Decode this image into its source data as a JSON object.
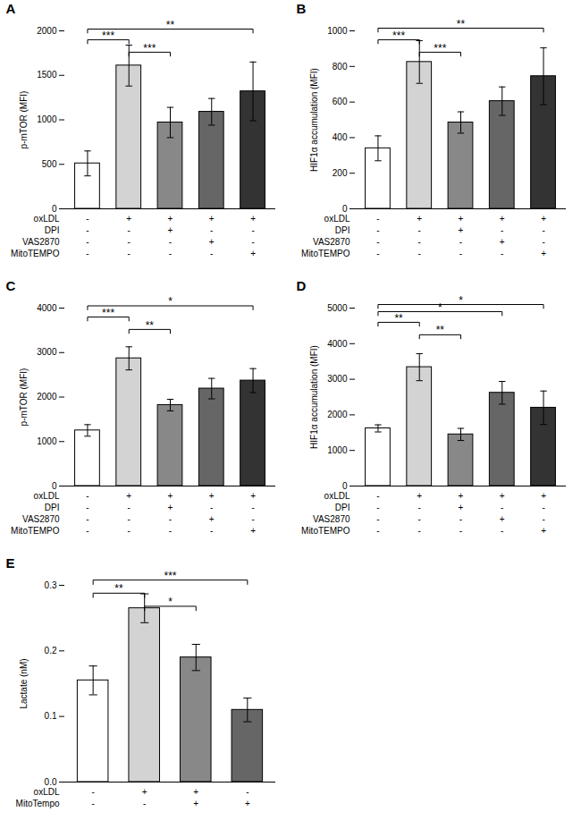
{
  "chart_data": [
    {
      "type": "bar",
      "title": "A",
      "ylabel": "p-mTOR (MFI)",
      "categories": [
        null,
        null,
        null,
        null,
        null
      ],
      "values": [
        510,
        1610,
        970,
        1090,
        1320
      ],
      "errors": [
        140,
        230,
        170,
        150,
        330
      ],
      "colors": [
        "#ffffff",
        "#d3d3d3",
        "#888888",
        "#666666",
        "#333333"
      ],
      "ylim": [
        0,
        2000
      ],
      "yticks": [
        0,
        500,
        1000,
        1500,
        2000
      ],
      "annotations": [
        {
          "bars": [
            0,
            1
          ],
          "label": "***",
          "y": 1900
        },
        {
          "bars": [
            1,
            2
          ],
          "label": "***",
          "y": 1760
        },
        {
          "bars": [
            0,
            4
          ],
          "label": "**",
          "y": 2020
        }
      ],
      "sign_rows": [
        {
          "label": "oxLDL",
          "signs": [
            "-",
            "+",
            "+",
            "+",
            "+"
          ]
        },
        {
          "label": "DPI",
          "signs": [
            "-",
            "-",
            "+",
            "-",
            "-"
          ]
        },
        {
          "label": "VAS2870",
          "signs": [
            "-",
            "-",
            "-",
            "+",
            "-"
          ]
        },
        {
          "label": "MitoTEMPO",
          "signs": [
            "-",
            "-",
            "-",
            "-",
            "+"
          ]
        }
      ]
    },
    {
      "type": "bar",
      "title": "B",
      "ylabel": "HIF1α accumulation (MFI)",
      "categories": [
        null,
        null,
        null,
        null,
        null
      ],
      "values": [
        340,
        825,
        485,
        605,
        745
      ],
      "errors": [
        70,
        120,
        60,
        80,
        160
      ],
      "colors": [
        "#ffffff",
        "#d3d3d3",
        "#888888",
        "#666666",
        "#333333"
      ],
      "ylim": [
        0,
        1000
      ],
      "yticks": [
        0,
        200,
        400,
        600,
        800,
        1000
      ],
      "annotations": [
        {
          "bars": [
            0,
            1
          ],
          "label": "***",
          "y": 950
        },
        {
          "bars": [
            1,
            2
          ],
          "label": "***",
          "y": 880
        },
        {
          "bars": [
            0,
            4
          ],
          "label": "**",
          "y": 1015
        }
      ],
      "sign_rows": [
        {
          "label": "oxLDL",
          "signs": [
            "-",
            "+",
            "+",
            "+",
            "+"
          ]
        },
        {
          "label": "DPI",
          "signs": [
            "-",
            "-",
            "+",
            "-",
            "-"
          ]
        },
        {
          "label": "VAS2870",
          "signs": [
            "-",
            "-",
            "-",
            "+",
            "-"
          ]
        },
        {
          "label": "MitoTEMPO",
          "signs": [
            "-",
            "-",
            "-",
            "-",
            "+"
          ]
        }
      ]
    },
    {
      "type": "bar",
      "title": "C",
      "ylabel": "p-mTOR (MFI)",
      "categories": [
        null,
        null,
        null,
        null,
        null
      ],
      "values": [
        1250,
        2870,
        1820,
        2190,
        2370
      ],
      "errors": [
        130,
        260,
        130,
        230,
        270
      ],
      "colors": [
        "#ffffff",
        "#d3d3d3",
        "#888888",
        "#666666",
        "#333333"
      ],
      "ylim": [
        0,
        4000
      ],
      "yticks": [
        0,
        1000,
        2000,
        3000,
        4000
      ],
      "annotations": [
        {
          "bars": [
            0,
            1
          ],
          "label": "***",
          "y": 3800
        },
        {
          "bars": [
            1,
            2
          ],
          "label": "**",
          "y": 3520
        },
        {
          "bars": [
            0,
            4
          ],
          "label": "*",
          "y": 4050
        }
      ],
      "sign_rows": [
        {
          "label": "oxLDL",
          "signs": [
            "-",
            "+",
            "+",
            "+",
            "+"
          ]
        },
        {
          "label": "DPI",
          "signs": [
            "-",
            "-",
            "+",
            "-",
            "-"
          ]
        },
        {
          "label": "VAS2870",
          "signs": [
            "-",
            "-",
            "-",
            "+",
            "-"
          ]
        },
        {
          "label": "MitoTEMPO",
          "signs": [
            "-",
            "-",
            "-",
            "-",
            "+"
          ]
        }
      ]
    },
    {
      "type": "bar",
      "title": "D",
      "ylabel": "HIF1α accumulation (MFI)",
      "categories": [
        null,
        null,
        null,
        null,
        null
      ],
      "values": [
        1620,
        3340,
        1450,
        2620,
        2200
      ],
      "errors": [
        100,
        380,
        170,
        320,
        470
      ],
      "colors": [
        "#ffffff",
        "#d3d3d3",
        "#888888",
        "#666666",
        "#333333"
      ],
      "ylim": [
        0,
        5000
      ],
      "yticks": [
        0,
        1000,
        2000,
        3000,
        4000,
        5000
      ],
      "annotations": [
        {
          "bars": [
            0,
            1
          ],
          "label": "**",
          "y": 4600
        },
        {
          "bars": [
            1,
            2
          ],
          "label": "**",
          "y": 4250
        },
        {
          "bars": [
            0,
            3
          ],
          "label": "*",
          "y": 4900
        },
        {
          "bars": [
            0,
            4
          ],
          "label": "*",
          "y": 5100
        }
      ],
      "sign_rows": [
        {
          "label": "oxLDL",
          "signs": [
            "-",
            "+",
            "+",
            "+",
            "+"
          ]
        },
        {
          "label": "DPI",
          "signs": [
            "-",
            "-",
            "+",
            "-",
            "-"
          ]
        },
        {
          "label": "VAS2870",
          "signs": [
            "-",
            "-",
            "-",
            "+",
            "-"
          ]
        },
        {
          "label": "MitoTEMPO",
          "signs": [
            "-",
            "-",
            "-",
            "-",
            "+"
          ]
        }
      ]
    },
    {
      "type": "bar",
      "title": "E",
      "ylabel": "Lactate (nM)",
      "categories": [
        null,
        null,
        null,
        null
      ],
      "values": [
        0.155,
        0.265,
        0.19,
        0.11
      ],
      "errors": [
        0.022,
        0.022,
        0.02,
        0.018
      ],
      "colors": [
        "#ffffff",
        "#d3d3d3",
        "#888888",
        "#666666"
      ],
      "ylim": [
        0.0,
        0.3
      ],
      "yticks": [
        {
          "value": 0.0,
          "label": "0.0"
        },
        0.1,
        0.2,
        0.3
      ],
      "annotations": [
        {
          "bars": [
            0,
            1
          ],
          "label": "**",
          "y": 0.288
        },
        {
          "bars": [
            1,
            2
          ],
          "label": "*",
          "y": 0.268
        },
        {
          "bars": [
            0,
            3
          ],
          "label": "***",
          "y": 0.308
        }
      ],
      "sign_rows": [
        {
          "label": "oxLDL",
          "signs": [
            "-",
            "+",
            "+",
            "-"
          ]
        },
        {
          "label": "MitoTempo",
          "signs": [
            "-",
            "-",
            "+",
            "+"
          ]
        }
      ]
    }
  ]
}
